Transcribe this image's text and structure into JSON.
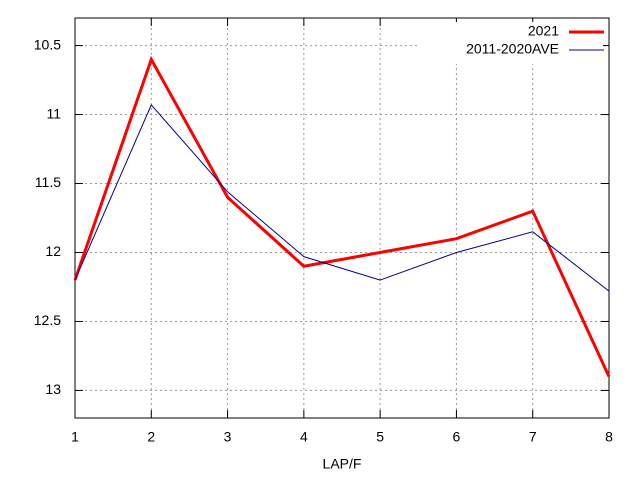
{
  "chart_data": {
    "type": "line",
    "x_label": "LAP/F",
    "x": [
      1,
      2,
      3,
      4,
      5,
      6,
      7,
      8
    ],
    "series": [
      {
        "name": "2021",
        "color": "#ff0000",
        "values": [
          12.2,
          10.6,
          11.6,
          12.1,
          12.0,
          11.9,
          11.7,
          12.9
        ]
      },
      {
        "name": "2011-2020AVE",
        "color": "#00008b",
        "values": [
          12.2,
          10.93,
          11.56,
          12.03,
          12.2,
          12.0,
          11.85,
          12.28
        ]
      }
    ],
    "xlim": [
      1,
      8
    ],
    "xticks": [
      1,
      2,
      3,
      4,
      5,
      6,
      7,
      8
    ],
    "ylim": [
      13.2,
      10.3
    ],
    "yticks": [
      10.5,
      11,
      11.5,
      12,
      12.5,
      13
    ],
    "grid": true,
    "legend": "top-right"
  }
}
